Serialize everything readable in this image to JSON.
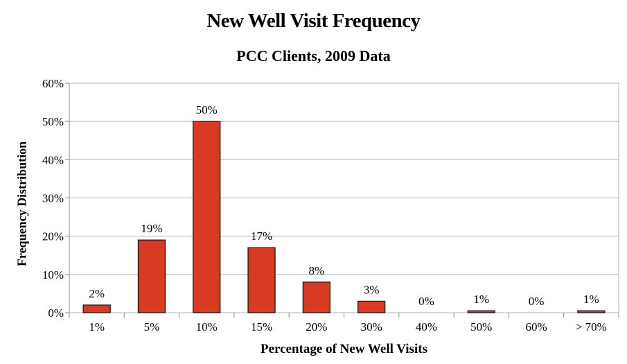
{
  "chart_data": {
    "type": "bar",
    "title": "New Well Visit Frequency",
    "subtitle": "PCC Clients, 2009 Data",
    "xlabel": "Percentage of New Well Visits",
    "ylabel": "Frequency Distribution",
    "categories": [
      "1%",
      "5%",
      "10%",
      "15%",
      "20%",
      "30%",
      "40%",
      "50%",
      "60%",
      "> 70%"
    ],
    "values": [
      2,
      19,
      50,
      17,
      8,
      3,
      0,
      0.5,
      0,
      0.5
    ],
    "data_labels": [
      "2%",
      "19%",
      "50%",
      "17%",
      "8%",
      "3%",
      "0%",
      "1%",
      "0%",
      "1%"
    ],
    "ylim": [
      0,
      60
    ],
    "yticks": [
      0,
      10,
      20,
      30,
      40,
      50,
      60
    ],
    "ytick_labels": [
      "0%",
      "10%",
      "20%",
      "30%",
      "40%",
      "50%",
      "60%"
    ],
    "grid": true,
    "legend": "none",
    "colors": {
      "bar": "#d93a22",
      "bar_stroke": "#1a1a1a",
      "grid": "#b3b3b3",
      "axis": "#8c8c8c"
    }
  }
}
